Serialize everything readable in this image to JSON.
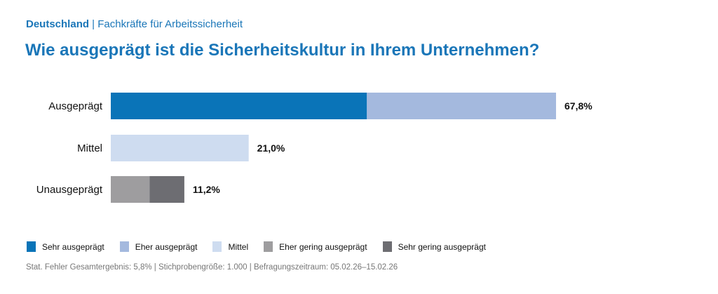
{
  "subtitle": {
    "country": "Deutschland",
    "group": "Fachkräfte für Arbeitssicherheit"
  },
  "title": "Wie ausgeprägt ist die Sicherheitskultur in Ihrem Unternehmen?",
  "chart_data": {
    "type": "bar",
    "orientation": "horizontal",
    "stacked": true,
    "unit": "%",
    "categories": [
      "Ausgeprägt",
      "Mittel",
      "Unausgeprägt"
    ],
    "totals_labels": [
      "67,8%",
      "21,0%",
      "11,2%"
    ],
    "series": [
      {
        "name": "Sehr ausgeprägt",
        "color": "#0a74b8",
        "values": [
          39.0,
          0,
          0
        ]
      },
      {
        "name": "Eher ausgeprägt",
        "color": "#a4b9de",
        "values": [
          28.8,
          0,
          0
        ]
      },
      {
        "name": "Mittel",
        "color": "#cedcf0",
        "values": [
          0,
          21.0,
          0
        ]
      },
      {
        "name": "Eher gering ausgeprägt",
        "color": "#9e9d9f",
        "values": [
          0,
          0,
          5.9
        ]
      },
      {
        "name": "Sehr gering ausgeprägt",
        "color": "#6d6d72",
        "values": [
          0,
          0,
          5.3
        ]
      }
    ],
    "legend": "bottom",
    "grid": false
  },
  "footer": "Stat. Fehler Gesamtergebnis: 5,8% | Stichprobengröße: 1.000 | Befragungszeitraum: 05.02.26–15.02.26"
}
